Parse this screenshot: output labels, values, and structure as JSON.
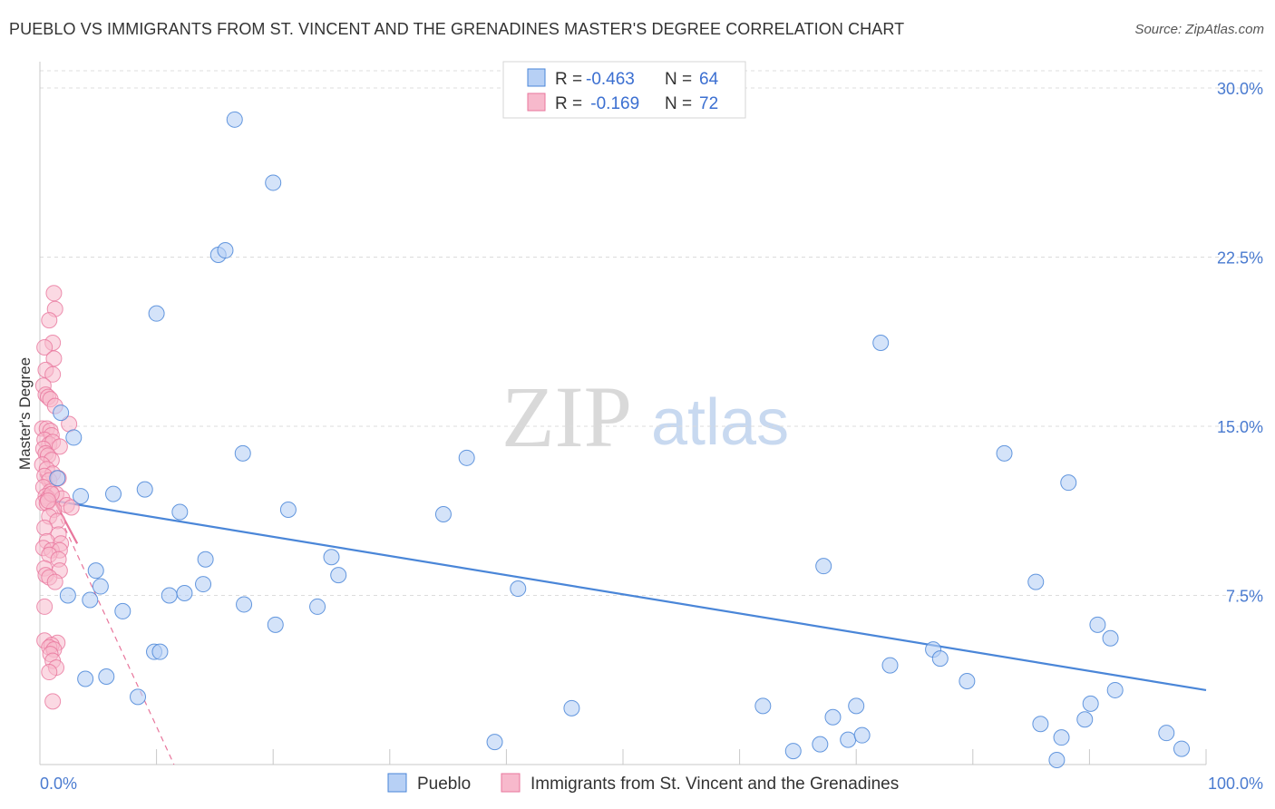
{
  "title": "PUEBLO VS IMMIGRANTS FROM ST. VINCENT AND THE GRENADINES MASTER'S DEGREE CORRELATION CHART",
  "source": "Source: ZipAtlas.com",
  "watermark": {
    "zip": "ZIP",
    "atlas": "atlas"
  },
  "legend": {
    "row1": {
      "r_label": "R = ",
      "r_value": "-0.463",
      "n_label": "N = ",
      "n_value": "64"
    },
    "row2": {
      "r_label": "R = ",
      "r_value": " -0.169",
      "n_label": "N = ",
      "n_value": "72"
    }
  },
  "bottom_legend": {
    "series1": "Pueblo",
    "series2": "Immigrants from St. Vincent and the Grenadines"
  },
  "chart_data": {
    "type": "scatter",
    "title": "PUEBLO VS IMMIGRANTS FROM ST. VINCENT AND THE GRENADINES MASTER'S DEGREE CORRELATION CHART",
    "xlabel": "",
    "ylabel": "Master's Degree",
    "xlim": [
      0,
      100
    ],
    "ylim": [
      0,
      30
    ],
    "x_tick_labels": {
      "min": "0.0%",
      "max": "100.0%"
    },
    "y_ticks": [
      7.5,
      15.0,
      22.5,
      30.0
    ],
    "y_tick_labels": [
      "7.5%",
      "15.0%",
      "22.5%",
      "30.0%"
    ],
    "colors": {
      "pueblo": "#4a86d8",
      "pueblo_fill": "#b7d0f5",
      "svg": "#e8769c",
      "svg_fill": "#f7b9cc"
    },
    "series": [
      {
        "name": "Pueblo",
        "R": -0.463,
        "N": 64,
        "trend": {
          "x": [
            0,
            100
          ],
          "y": [
            11.8,
            3.3
          ]
        },
        "points": [
          [
            16.7,
            28.6
          ],
          [
            20.0,
            25.8
          ],
          [
            15.3,
            22.6
          ],
          [
            15.9,
            22.8
          ],
          [
            10.0,
            20.0
          ],
          [
            1.8,
            15.6
          ],
          [
            2.9,
            14.5
          ],
          [
            1.5,
            12.7
          ],
          [
            3.5,
            11.9
          ],
          [
            6.3,
            12.0
          ],
          [
            9.0,
            12.2
          ],
          [
            12.0,
            11.2
          ],
          [
            17.4,
            13.8
          ],
          [
            21.3,
            11.3
          ],
          [
            25.0,
            9.2
          ],
          [
            14.2,
            9.1
          ],
          [
            4.8,
            8.6
          ],
          [
            5.2,
            7.9
          ],
          [
            2.4,
            7.5
          ],
          [
            4.3,
            7.3
          ],
          [
            7.1,
            6.8
          ],
          [
            11.1,
            7.5
          ],
          [
            12.4,
            7.6
          ],
          [
            14.0,
            8.0
          ],
          [
            17.5,
            7.1
          ],
          [
            20.2,
            6.2
          ],
          [
            23.8,
            7.0
          ],
          [
            25.6,
            8.4
          ],
          [
            34.6,
            11.1
          ],
          [
            36.6,
            13.6
          ],
          [
            41.0,
            7.8
          ],
          [
            9.8,
            5.0
          ],
          [
            10.3,
            5.0
          ],
          [
            3.9,
            3.8
          ],
          [
            5.7,
            3.9
          ],
          [
            8.4,
            3.0
          ],
          [
            39.0,
            1.0
          ],
          [
            45.6,
            2.5
          ],
          [
            64.6,
            0.6
          ],
          [
            66.9,
            0.9
          ],
          [
            68.0,
            2.1
          ],
          [
            69.3,
            1.1
          ],
          [
            70.0,
            2.6
          ],
          [
            72.1,
            18.7
          ],
          [
            72.9,
            4.4
          ],
          [
            76.6,
            5.1
          ],
          [
            77.2,
            4.7
          ],
          [
            79.5,
            3.7
          ],
          [
            82.7,
            13.8
          ],
          [
            85.4,
            8.1
          ],
          [
            85.8,
            1.8
          ],
          [
            87.2,
            0.2
          ],
          [
            87.6,
            1.2
          ],
          [
            88.2,
            12.5
          ],
          [
            89.6,
            2.0
          ],
          [
            90.1,
            2.7
          ],
          [
            90.7,
            6.2
          ],
          [
            91.8,
            5.6
          ],
          [
            92.2,
            3.3
          ],
          [
            96.6,
            1.4
          ],
          [
            97.9,
            0.7
          ],
          [
            67.2,
            8.8
          ],
          [
            62.0,
            2.6
          ],
          [
            70.5,
            1.3
          ]
        ]
      },
      {
        "name": "Immigrants from St. Vincent and the Grenadines",
        "R": -0.169,
        "N": 72,
        "trend": {
          "x": [
            0,
            3.2
          ],
          "y": [
            12.9,
            9.8
          ]
        },
        "trend_extended": {
          "x": [
            0,
            11.5
          ],
          "y": [
            12.9,
            0
          ]
        },
        "points": [
          [
            1.2,
            20.9
          ],
          [
            1.3,
            20.2
          ],
          [
            0.8,
            19.7
          ],
          [
            1.1,
            18.7
          ],
          [
            0.4,
            18.5
          ],
          [
            1.2,
            18.0
          ],
          [
            0.5,
            17.5
          ],
          [
            1.1,
            17.3
          ],
          [
            0.3,
            16.8
          ],
          [
            0.5,
            16.4
          ],
          [
            0.7,
            16.3
          ],
          [
            0.9,
            16.2
          ],
          [
            1.3,
            15.9
          ],
          [
            2.5,
            15.1
          ],
          [
            0.2,
            14.9
          ],
          [
            0.6,
            14.9
          ],
          [
            0.9,
            14.8
          ],
          [
            1.0,
            14.6
          ],
          [
            0.4,
            14.4
          ],
          [
            0.8,
            14.2
          ],
          [
            1.1,
            14.3
          ],
          [
            1.7,
            14.1
          ],
          [
            0.3,
            14.0
          ],
          [
            0.5,
            13.8
          ],
          [
            0.7,
            13.7
          ],
          [
            1.0,
            13.5
          ],
          [
            0.2,
            13.3
          ],
          [
            0.6,
            13.1
          ],
          [
            1.1,
            12.9
          ],
          [
            0.4,
            12.8
          ],
          [
            0.8,
            12.6
          ],
          [
            1.6,
            12.7
          ],
          [
            0.3,
            12.3
          ],
          [
            0.9,
            12.1
          ],
          [
            1.4,
            12.0
          ],
          [
            0.5,
            11.9
          ],
          [
            0.7,
            11.8
          ],
          [
            1.9,
            11.8
          ],
          [
            0.3,
            11.6
          ],
          [
            0.6,
            11.6
          ],
          [
            2.3,
            11.5
          ],
          [
            2.7,
            11.4
          ],
          [
            1.2,
            11.3
          ],
          [
            0.8,
            11.0
          ],
          [
            1.5,
            10.8
          ],
          [
            0.4,
            10.5
          ],
          [
            1.6,
            10.2
          ],
          [
            0.6,
            9.9
          ],
          [
            1.8,
            9.8
          ],
          [
            0.3,
            9.6
          ],
          [
            1.0,
            9.5
          ],
          [
            1.7,
            9.5
          ],
          [
            0.8,
            9.3
          ],
          [
            1.6,
            9.1
          ],
          [
            0.4,
            8.7
          ],
          [
            1.7,
            8.6
          ],
          [
            0.5,
            8.4
          ],
          [
            0.8,
            8.3
          ],
          [
            1.3,
            8.1
          ],
          [
            0.4,
            7.0
          ],
          [
            0.4,
            5.5
          ],
          [
            1.5,
            5.4
          ],
          [
            1.0,
            5.3
          ],
          [
            0.8,
            5.2
          ],
          [
            1.2,
            5.1
          ],
          [
            0.9,
            4.9
          ],
          [
            1.1,
            4.6
          ],
          [
            1.4,
            4.3
          ],
          [
            0.8,
            4.1
          ],
          [
            1.1,
            2.8
          ],
          [
            1.0,
            12.0
          ],
          [
            0.7,
            11.7
          ]
        ]
      }
    ]
  }
}
